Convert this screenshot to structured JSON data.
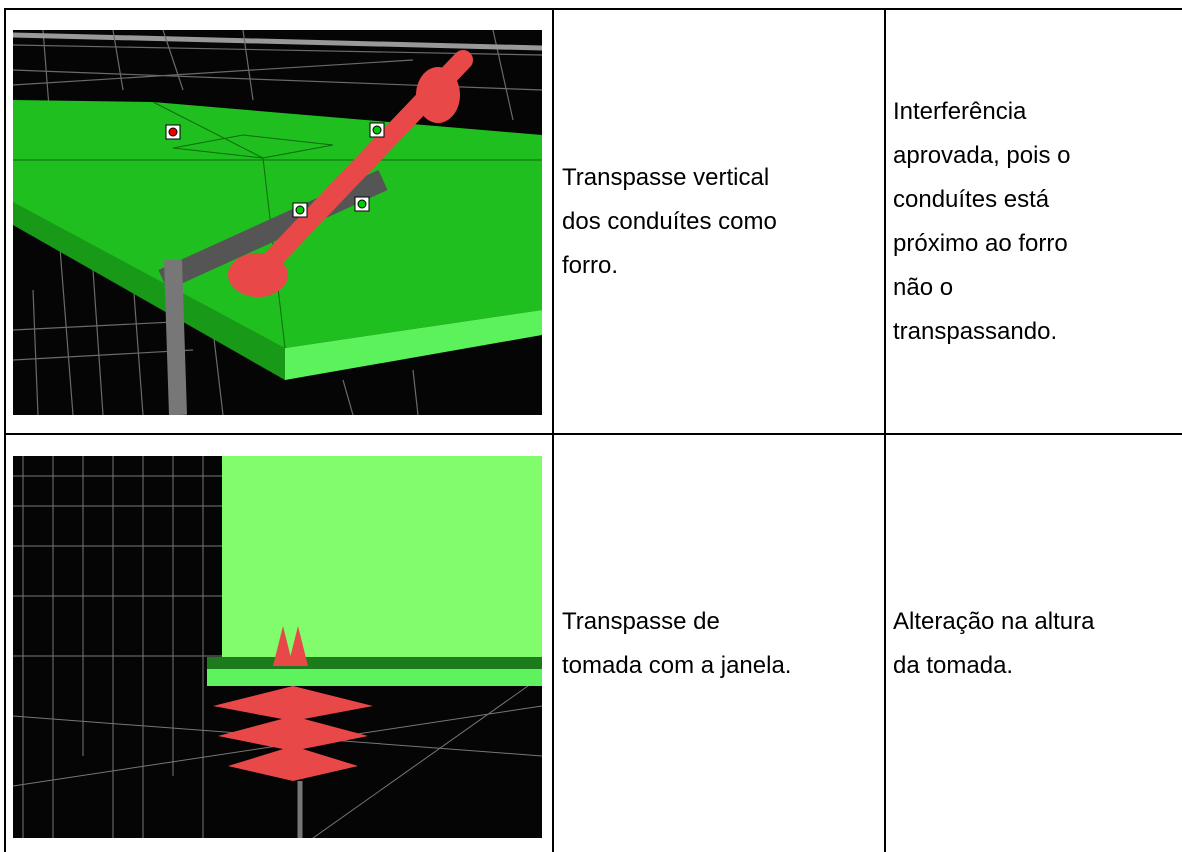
{
  "table": {
    "rows": [
      {
        "description": [
          "Transpasse vertical",
          "dos conduítes como",
          "forro."
        ],
        "resolution": [
          "Interferência",
          "aprovada, pois o",
          "conduítes está",
          "próximo ao forro",
          "não o",
          "transpassando."
        ]
      },
      {
        "description": [
          "Transpasse de",
          "tomada com a janela."
        ],
        "resolution": [
          "Alteração na altura",
          "da tomada."
        ]
      }
    ]
  }
}
